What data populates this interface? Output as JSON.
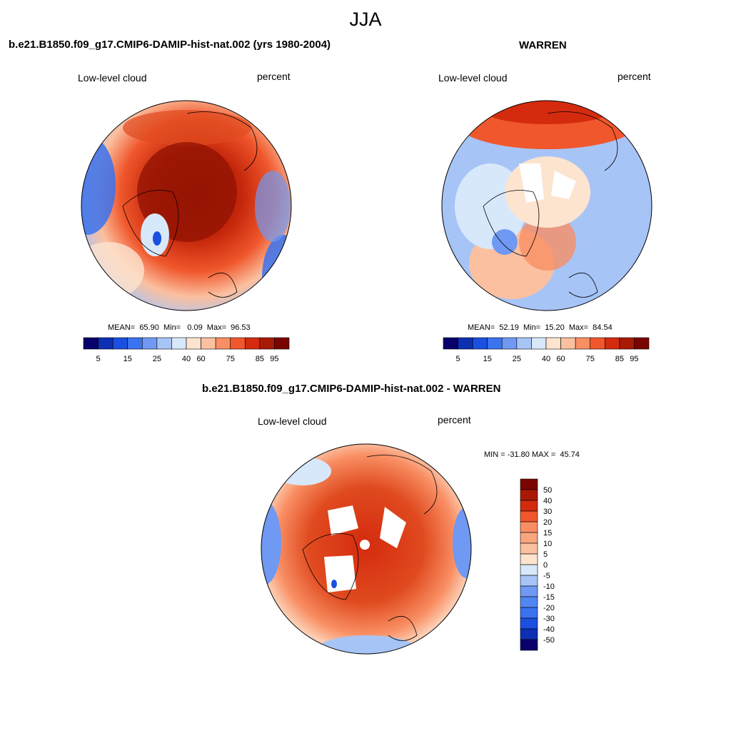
{
  "figure": {
    "title": "JJA"
  },
  "colors": {
    "abs_scale": [
      "#08006b",
      "#0d2fb3",
      "#1a4fe0",
      "#3a72ef",
      "#6f99f2",
      "#a7c4f7",
      "#d8e8fb",
      "#fde4cf",
      "#fbc0a0",
      "#f98e63",
      "#f0572c",
      "#d42b0f",
      "#a91a05",
      "#7a0400"
    ],
    "diff_scale": [
      "#08006b",
      "#0d2fb3",
      "#1a4fe0",
      "#3a72ef",
      "#5286f2",
      "#6f99f2",
      "#a7c4f7",
      "#d8e8fb",
      "#fde4cf",
      "#fbc0a0",
      "#f9a680",
      "#f98e63",
      "#f0572c",
      "#d42b0f",
      "#a91a05",
      "#7a0400"
    ]
  },
  "panels": [
    {
      "title": "b.e21.B1850.f09_g17.CMIP6-DAMIP-hist-nat.002 (yrs 1980-2004)",
      "left_label": "Low-level cloud",
      "right_label": "percent",
      "stats": "MEAN=  65.90  Min=   0.09  Max=  96.53",
      "colorbar_ticks": [
        "5",
        "15",
        "25",
        "40",
        "60",
        "75",
        "85",
        "95"
      ]
    },
    {
      "title": "WARREN",
      "left_label": "Low-level cloud",
      "right_label": "percent",
      "stats": "MEAN=  52.19  Min=  15.20  Max=  84.54",
      "colorbar_ticks": [
        "5",
        "15",
        "25",
        "40",
        "60",
        "75",
        "85",
        "95"
      ]
    },
    {
      "title": "b.e21.B1850.f09_g17.CMIP6-DAMIP-hist-nat.002 - WARREN",
      "left_label": "Low-level cloud",
      "right_label": "percent",
      "stats": "MIN = -31.80 MAX =  45.74",
      "colorbar_ticks": [
        "50",
        "40",
        "30",
        "20",
        "15",
        "10",
        "5",
        "0",
        "-5",
        "-10",
        "-15",
        "-20",
        "-30",
        "-40",
        "-50"
      ]
    }
  ]
}
